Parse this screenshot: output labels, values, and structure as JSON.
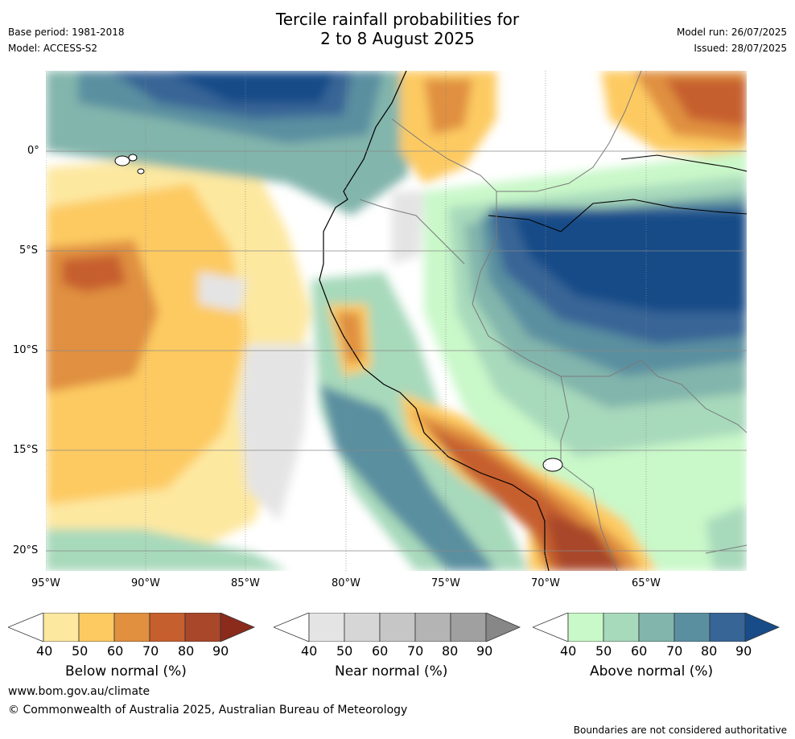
{
  "title": {
    "line1": "Tercile rainfall probabilities for",
    "line2": "2 to 8 August 2025"
  },
  "meta": {
    "base_period": "Base period: 1981-2018",
    "model": "Model: ACCESS-S2",
    "model_run": "Model run: 26/07/2025",
    "issued": "Issued: 28/07/2025"
  },
  "map": {
    "lon_ticks": [
      "95°W",
      "90°W",
      "85°W",
      "80°W",
      "75°W",
      "70°W",
      "65°W"
    ],
    "lat_ticks": [
      "0°",
      "5°S",
      "10°S",
      "15°S",
      "20°S"
    ]
  },
  "colorbars": [
    {
      "label": "Below normal (%)",
      "ticks": [
        "40",
        "50",
        "60",
        "70",
        "80",
        "90"
      ],
      "colors": [
        "#fde8a0",
        "#fdca62",
        "#e0903f",
        "#c65f2e",
        "#a8472a",
        "#8b2b1c"
      ]
    },
    {
      "label": "Near normal (%)",
      "ticks": [
        "40",
        "50",
        "60",
        "70",
        "80",
        "90"
      ],
      "colors": [
        "#e4e4e4",
        "#d6d6d6",
        "#c6c6c6",
        "#b4b4b4",
        "#a0a0a0",
        "#878787"
      ]
    },
    {
      "label": "Above normal (%)",
      "ticks": [
        "40",
        "50",
        "60",
        "70",
        "80",
        "90"
      ],
      "colors": [
        "#c9f8c9",
        "#a7d9bb",
        "#82b5ac",
        "#5a8fa0",
        "#376596",
        "#184c88"
      ]
    }
  ],
  "footer": {
    "url": "www.bom.gov.au/climate",
    "copyright": "© Commonwealth of Australia 2025, Australian Bureau of Meteorology",
    "disclaimer": "Boundaries are not considered authoritative"
  }
}
